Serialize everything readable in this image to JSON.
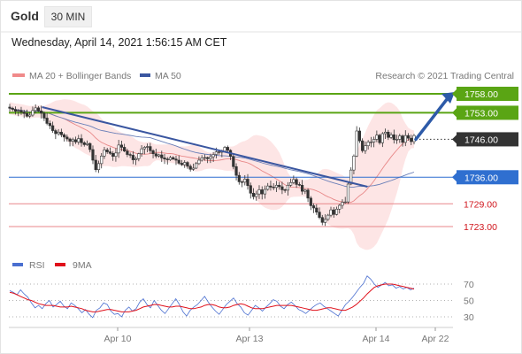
{
  "header": {
    "title": "Gold",
    "timeframe_button": "30 MIN",
    "datetime": "Wednesday, April 14, 2021 1:56:15 AM CET"
  },
  "colors": {
    "green_level": "#5aa514",
    "blue_level": "#2f6fd0",
    "red_level": "#e8868a",
    "current_price_tag": "#333333",
    "trend_line": "#3a56a0",
    "arrow": "#2d5aa8",
    "bollinger_fill": "#fde1e1",
    "ma20": "#e88888",
    "ma50": "#6a7fb8",
    "rsi_line": "#4a6fd0",
    "rsi_ma": "#e0101a",
    "up_candle": "#ffffff",
    "down_candle": "#333333"
  },
  "chart_data": [
    {
      "type": "candlestick",
      "legend": [
        {
          "name": "MA 20 + Bollinger Bands",
          "color": "#f08a8a"
        },
        {
          "name": "MA 50",
          "color": "#3a56a0"
        }
      ],
      "legend_position": "top-left",
      "attribution": "Research © 2021 Trading Central",
      "x_ticks": [
        "Apr 10",
        "Apr 13",
        "Apr 14",
        "Apr 22"
      ],
      "ylim": [
        1721,
        1761
      ],
      "current_price": {
        "label": "1746.00",
        "value": 1746
      },
      "levels": [
        {
          "label": "1758.00",
          "value": 1758,
          "kind": "resistance",
          "style": "tag-green"
        },
        {
          "label": "1753.00",
          "value": 1753,
          "kind": "resistance",
          "style": "tag-green"
        },
        {
          "label": "1736.00",
          "value": 1736,
          "kind": "pivot",
          "style": "tag-blue"
        },
        {
          "label": "1729.00",
          "value": 1729,
          "kind": "support",
          "style": "text-red"
        },
        {
          "label": "1723.00",
          "value": 1723,
          "kind": "support",
          "style": "text-red"
        }
      ],
      "trend_line": {
        "from": {
          "t": 0.08,
          "v": 1754.5
        },
        "to": {
          "t": 0.885,
          "v": 1733.5
        }
      },
      "projection_arrow": {
        "from_value": 1746,
        "to_value": 1758
      },
      "closes": [
        1754.2,
        1753.9,
        1753.4,
        1753.6,
        1753.2,
        1752.8,
        1752.1,
        1752.4,
        1753.6,
        1754.3,
        1753.5,
        1752.9,
        1751.6,
        1750.2,
        1749.6,
        1748.3,
        1747.5,
        1747.9,
        1747.2,
        1746.6,
        1746.1,
        1745.5,
        1745.9,
        1745.3,
        1746.2,
        1745.1,
        1744.6,
        1744.9,
        1743.3,
        1740.5,
        1738.0,
        1739.6,
        1741.6,
        1743.2,
        1742.7,
        1742.3,
        1741.5,
        1742.4,
        1744.5,
        1743.9,
        1742.9,
        1742.0,
        1741.8,
        1740.6,
        1740.9,
        1742.2,
        1743.5,
        1743.9,
        1744.1,
        1743.0,
        1742.2,
        1741.6,
        1741.9,
        1741.1,
        1740.8,
        1740.6,
        1741.2,
        1740.8,
        1740.5,
        1739.7,
        1739.3,
        1739.9,
        1738.9,
        1738.1,
        1738.4,
        1739.6,
        1740.5,
        1741.1,
        1741.2,
        1740.9,
        1741.4,
        1742.0,
        1742.7,
        1742.6,
        1742.9,
        1743.9,
        1743.1,
        1741.5,
        1738.8,
        1736.5,
        1734.8,
        1734.7,
        1735.5,
        1733.8,
        1731.8,
        1730.9,
        1731.6,
        1732.7,
        1731.6,
        1732.8,
        1733.7,
        1733.4,
        1733.3,
        1733.9,
        1733.5,
        1732.7,
        1732.6,
        1733.9,
        1734.6,
        1735.4,
        1734.1,
        1733.9,
        1732.3,
        1732.6,
        1730.5,
        1728.5,
        1727.9,
        1726.8,
        1725.4,
        1724.1,
        1724.9,
        1726.0,
        1727.4,
        1726.2,
        1727.6,
        1728.6,
        1729.4,
        1729.5,
        1734.2,
        1737.9,
        1741.6,
        1748.2,
        1745.6,
        1743.0,
        1744.3,
        1745.3,
        1745.3,
        1746.0,
        1747.1,
        1745.1,
        1747.5,
        1747.9,
        1746.5,
        1747.2,
        1745.9,
        1746.0,
        1746.9,
        1745.2,
        1747.0,
        1746.3,
        1745.4,
        1747.0
      ]
    },
    {
      "type": "line",
      "legend": [
        {
          "name": "RSI",
          "color": "#4a6fd0"
        },
        {
          "name": "9MA",
          "color": "#e0101a"
        }
      ],
      "ylim": [
        20,
        80
      ],
      "y_ticks": [
        70,
        50,
        30
      ],
      "series": [
        {
          "name": "RSI",
          "values": [
            62,
            60,
            57,
            63,
            58,
            54,
            47,
            41,
            44,
            40,
            46,
            50,
            42,
            45,
            49,
            43,
            40,
            47,
            44,
            40,
            35,
            39,
            33,
            29,
            38,
            41,
            47,
            45,
            37,
            33,
            34,
            30,
            38,
            42,
            37,
            40,
            48,
            52,
            45,
            41,
            50,
            44,
            38,
            34,
            40,
            46,
            52,
            45,
            36,
            31,
            38,
            42,
            45,
            50,
            55,
            48,
            42,
            37,
            33,
            39,
            45,
            49,
            53,
            46,
            42,
            35,
            32,
            38,
            44,
            41,
            37,
            42,
            46,
            51,
            49,
            43,
            40,
            45,
            48,
            44,
            39,
            37,
            34,
            38,
            42,
            45,
            47,
            43,
            40,
            37,
            34,
            31,
            38,
            45,
            49,
            54,
            60,
            66,
            71,
            80,
            76,
            70,
            66,
            69,
            72,
            68,
            69,
            65,
            67,
            64,
            66,
            63,
            65
          ]
        },
        {
          "name": "9MA",
          "values": [
            60,
            59,
            57,
            55,
            53,
            51,
            50,
            48,
            46,
            45,
            44,
            44,
            44,
            43,
            42,
            42,
            42,
            43,
            42,
            41,
            40,
            38,
            37,
            36,
            36,
            37,
            38,
            39,
            39,
            38,
            37,
            36,
            36,
            36,
            37,
            38,
            40,
            42,
            43,
            44,
            45,
            45,
            44,
            43,
            42,
            42,
            43,
            43,
            42,
            41,
            40,
            40,
            41,
            42,
            44,
            45,
            45,
            44,
            42,
            41,
            41,
            42,
            44,
            45,
            46,
            45,
            43,
            41,
            40,
            40,
            40,
            41,
            42,
            43,
            44,
            44,
            44,
            44,
            44,
            43,
            42,
            41,
            40,
            39,
            38,
            38,
            39,
            40,
            41,
            41,
            40,
            39,
            38,
            38,
            40,
            42,
            45,
            49,
            53,
            58,
            62,
            66,
            68,
            69,
            70,
            70,
            70,
            69,
            68,
            67,
            66,
            65,
            64
          ]
        }
      ]
    }
  ]
}
